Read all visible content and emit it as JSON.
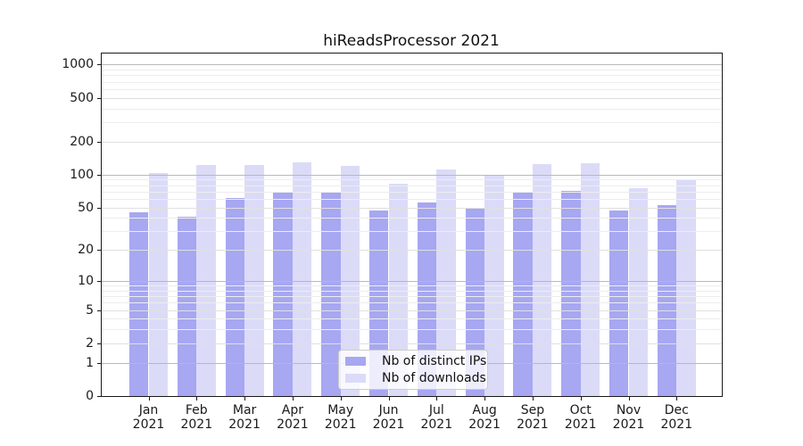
{
  "chart_data": {
    "type": "bar",
    "title": "hiReadsProcessor 2021",
    "categories": [
      "Jan",
      "Feb",
      "Mar",
      "Apr",
      "May",
      "Jun",
      "Jul",
      "Aug",
      "Sep",
      "Oct",
      "Nov",
      "Dec"
    ],
    "category_year": "2021",
    "series": [
      {
        "name": "Nb of distinct IPs",
        "color": "#a7a7f2",
        "values": [
          45,
          41,
          61,
          68,
          69,
          47,
          56,
          50,
          68,
          71,
          47,
          52
        ]
      },
      {
        "name": "Nb of downloads",
        "color": "#dbdbf8",
        "values": [
          103,
          123,
          122,
          129,
          120,
          82,
          112,
          97,
          124,
          126,
          75,
          90
        ]
      }
    ],
    "yscale": "log1p",
    "y_ticks": [
      0,
      1,
      2,
      5,
      10,
      20,
      50,
      100,
      200,
      500,
      1000
    ],
    "ylim": [
      0,
      1280
    ],
    "grid": "horizontal major and minor gridlines drawn over bars",
    "legend_position": "lower center"
  }
}
